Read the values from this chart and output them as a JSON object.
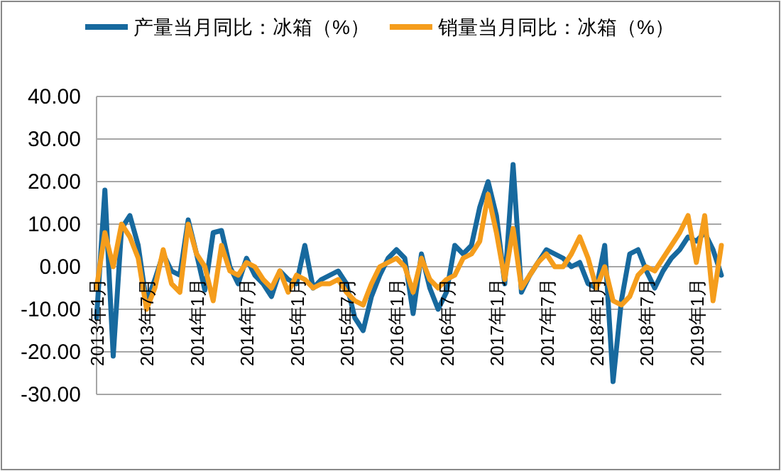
{
  "chart_data": {
    "type": "line",
    "categories": [
      "2013年1月",
      null,
      null,
      null,
      null,
      null,
      "2013年7月",
      null,
      null,
      null,
      null,
      null,
      "2014年1月",
      null,
      null,
      null,
      null,
      null,
      "2014年7月",
      null,
      null,
      null,
      null,
      null,
      "2015年1月",
      null,
      null,
      null,
      null,
      null,
      "2015年7月",
      null,
      null,
      null,
      null,
      null,
      "2016年1月",
      null,
      null,
      null,
      null,
      null,
      "2016年7月",
      null,
      null,
      null,
      null,
      null,
      "2017年1月",
      null,
      null,
      null,
      null,
      null,
      "2017年7月",
      null,
      null,
      null,
      null,
      null,
      "2018年1月",
      null,
      null,
      null,
      null,
      null,
      "2018年7月",
      null,
      null,
      null,
      null,
      null,
      "2019年1月",
      null,
      null,
      null
    ],
    "series": [
      {
        "name": "产量当月同比：冰箱（%）",
        "color": "#17699e",
        "values": [
          -12,
          18,
          -21,
          9,
          12,
          5,
          -8.5,
          -3,
          3,
          -1,
          -2,
          11,
          3,
          -5.5,
          8,
          8.5,
          0,
          -4,
          2,
          -2,
          -4,
          -7,
          -1,
          -3,
          -4,
          5,
          -5,
          -3,
          -2,
          -1,
          -4,
          -12,
          -15,
          -7,
          -2,
          2,
          4,
          2,
          -11,
          3,
          -5,
          -10,
          -6,
          5,
          3,
          5,
          14,
          20,
          12,
          -4,
          24,
          -6,
          -2,
          1,
          4,
          3,
          2,
          0,
          1,
          -4,
          -5,
          5,
          -27,
          -8,
          3,
          4,
          -1,
          -5,
          -1,
          2,
          4,
          7,
          6,
          8,
          4,
          -2
        ]
      },
      {
        "name": "销量当月同比：冰箱（%）",
        "color": "#f59d1c",
        "values": [
          -5,
          8,
          0,
          10,
          7,
          2,
          -10,
          -5,
          4,
          -4,
          -6,
          10,
          3,
          0,
          -8,
          5,
          -1,
          -2,
          1,
          0,
          -3,
          -5,
          -1,
          -6,
          -2,
          -3,
          -5,
          -4,
          -4,
          -3,
          -6,
          -8,
          -9,
          -4,
          0,
          1,
          2,
          0,
          -6,
          2,
          -3,
          -5,
          -3,
          -2,
          2,
          3,
          6,
          17,
          8,
          -3,
          9,
          -5,
          -2,
          1,
          3,
          0,
          0,
          3,
          7,
          2,
          -5,
          0,
          -8,
          -9,
          -7,
          -2,
          0,
          -1,
          2,
          5,
          8,
          12,
          1,
          12,
          -8,
          5
        ]
      }
    ],
    "ylim": [
      -30,
      40
    ],
    "yticks": [
      {
        "value": -30,
        "label": "-30.00"
      },
      {
        "value": -20,
        "label": "-20.00"
      },
      {
        "value": -10,
        "label": "-10.00"
      },
      {
        "value": 0,
        "label": "0.00"
      },
      {
        "value": 10,
        "label": "10.00"
      },
      {
        "value": 20,
        "label": "20.00"
      },
      {
        "value": 30,
        "label": "30.00"
      },
      {
        "value": 40,
        "label": "40.00"
      }
    ],
    "grid": "y",
    "legend": "top",
    "marker": "none",
    "line_style": "solid"
  }
}
